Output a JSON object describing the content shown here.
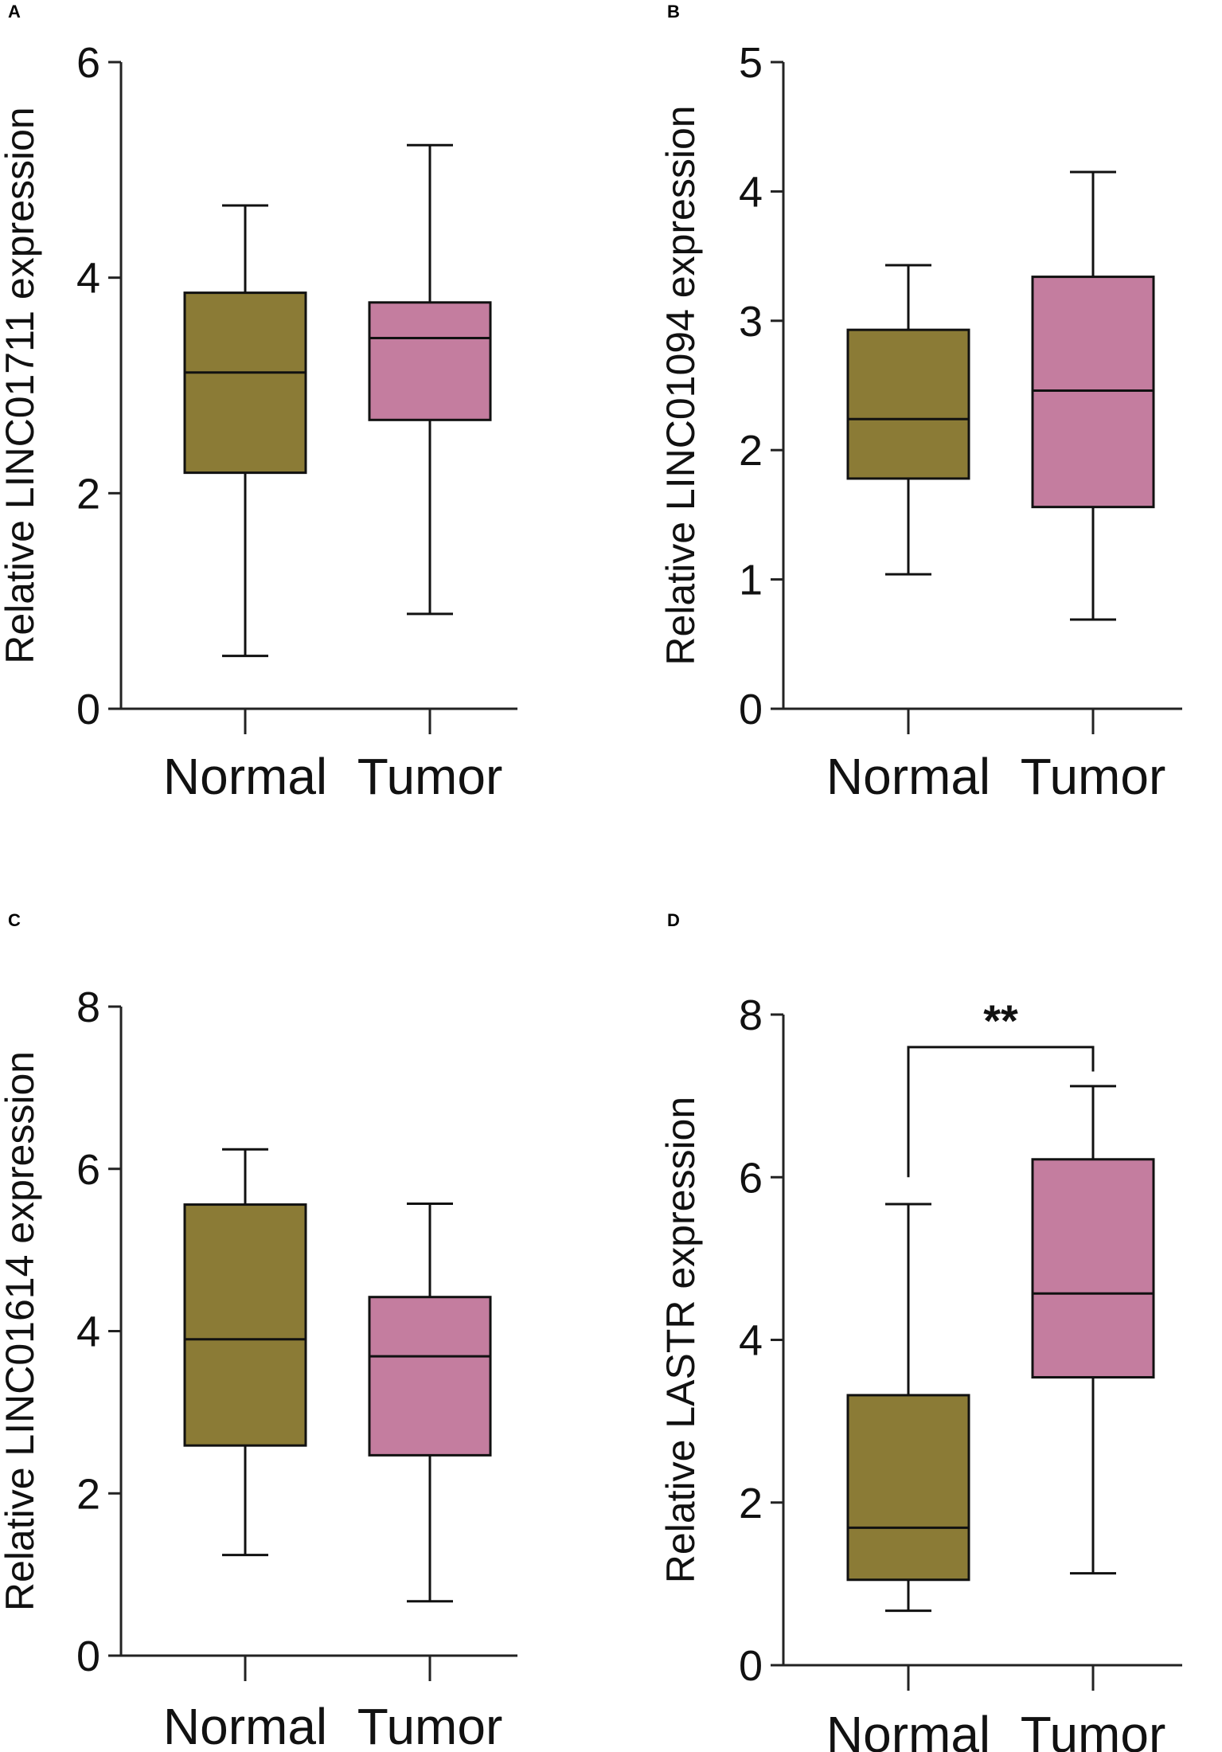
{
  "colors": {
    "normal": "#8b7b36",
    "tumor": "#c47d9f"
  },
  "chart_data": [
    {
      "panel": "A",
      "type": "box",
      "ylabel": "Relative LINC01711 expression",
      "ylim": [
        0,
        6
      ],
      "yticks": [
        0,
        2,
        4,
        6
      ],
      "categories": [
        "Normal",
        "Tumor"
      ],
      "boxes": [
        {
          "name": "Normal",
          "min": 0.49,
          "q1": 2.19,
          "median": 3.12,
          "q3": 3.86,
          "max": 4.67
        },
        {
          "name": "Tumor",
          "min": 0.88,
          "q1": 2.68,
          "median": 3.44,
          "q3": 3.77,
          "max": 5.23
        }
      ]
    },
    {
      "panel": "B",
      "type": "box",
      "ylabel": "Relative LINC01094 expression",
      "ylim": [
        0,
        5
      ],
      "yticks": [
        0,
        1,
        2,
        3,
        4,
        5
      ],
      "categories": [
        "Normal",
        "Tumor"
      ],
      "boxes": [
        {
          "name": "Normal",
          "min": 1.04,
          "q1": 1.78,
          "median": 2.24,
          "q3": 2.93,
          "max": 3.43
        },
        {
          "name": "Tumor",
          "min": 0.69,
          "q1": 1.56,
          "median": 2.46,
          "q3": 3.34,
          "max": 4.15
        }
      ]
    },
    {
      "panel": "C",
      "type": "box",
      "ylabel": "Relative LINC01614 expression",
      "ylim": [
        0,
        8
      ],
      "yticks": [
        0,
        2,
        4,
        6,
        8
      ],
      "categories": [
        "Normal",
        "Tumor"
      ],
      "boxes": [
        {
          "name": "Normal",
          "min": 1.24,
          "q1": 2.59,
          "median": 3.9,
          "q3": 5.56,
          "max": 6.24
        },
        {
          "name": "Tumor",
          "min": 0.67,
          "q1": 2.47,
          "median": 3.69,
          "q3": 4.42,
          "max": 5.57
        }
      ]
    },
    {
      "panel": "D",
      "type": "box",
      "ylabel": "Relative LASTR expression",
      "ylim": [
        0,
        8
      ],
      "yticks": [
        0,
        2,
        4,
        6,
        8
      ],
      "categories": [
        "Normal",
        "Tumor"
      ],
      "boxes": [
        {
          "name": "Normal",
          "min": 0.67,
          "q1": 1.05,
          "median": 1.69,
          "q3": 3.32,
          "max": 5.67
        },
        {
          "name": "Tumor",
          "min": 1.13,
          "q1": 3.54,
          "median": 4.57,
          "q3": 6.22,
          "max": 7.12
        }
      ],
      "significance": {
        "label": "**",
        "bracket_y": 7.6,
        "drop_to": [
          6.0,
          7.3
        ]
      }
    }
  ]
}
